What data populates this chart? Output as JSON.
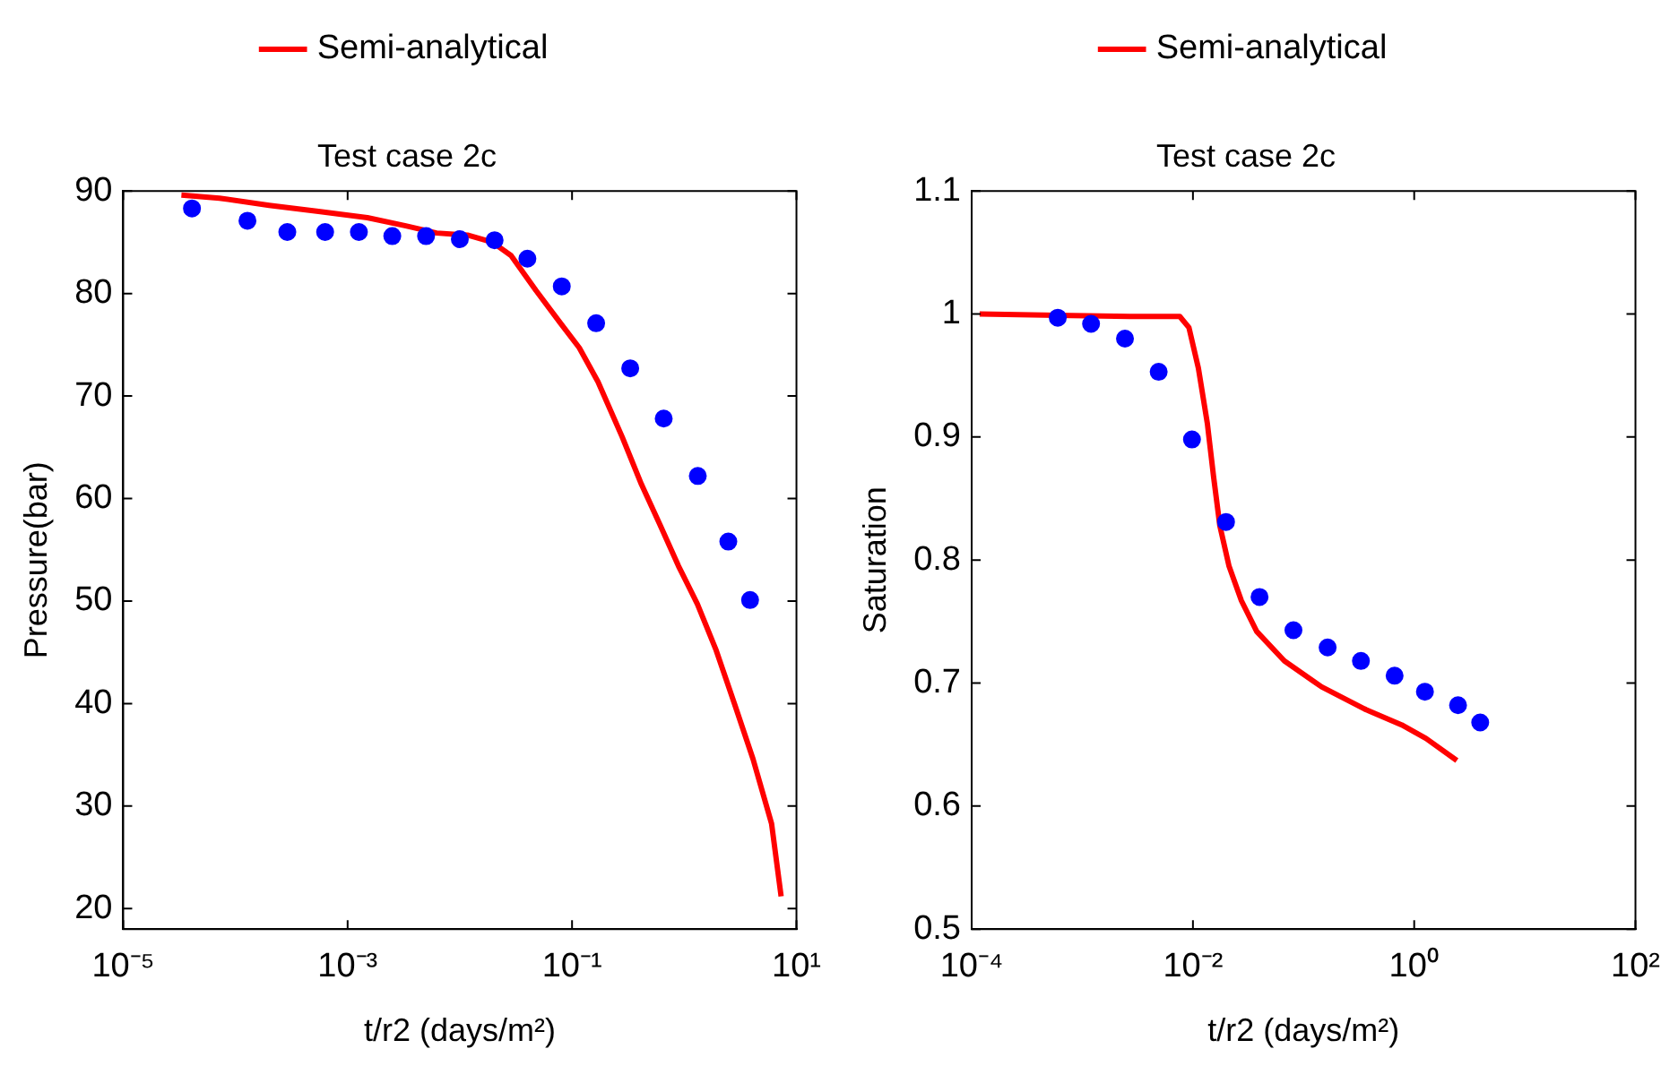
{
  "chart_data": [
    {
      "type": "line",
      "title": "Test case 2c",
      "xlabel": "t/r2 (days/m²)",
      "ylabel": "Pressure(bar)",
      "log": "x",
      "grid": false,
      "legend": "top",
      "xlim": [
        1e-05,
        10
      ],
      "xticks": [
        {
          "value": 1e-05,
          "label": "10⁻⁵"
        },
        {
          "value": 0.001,
          "label": "10⁻³"
        },
        {
          "value": 0.1,
          "label": "10⁻¹"
        },
        {
          "value": 10,
          "label": "10¹"
        }
      ],
      "ylim": [
        18,
        90
      ],
      "yticks": [
        20,
        30,
        40,
        50,
        60,
        70,
        80,
        90
      ],
      "series": [
        {
          "type": "scatter",
          "marker": "circle",
          "color": "#0000ff",
          "x": [
            4.1e-05,
            0.000128,
            0.00029,
            0.00063,
            0.00126,
            0.0025,
            0.005,
            0.01,
            0.0204,
            0.04,
            0.081,
            0.164,
            0.33,
            0.656,
            1.32,
            2.47,
            3.86
          ],
          "values": [
            88.3,
            87.1,
            86.0,
            86.0,
            86.0,
            85.6,
            85.6,
            85.3,
            85.2,
            83.4,
            80.7,
            77.1,
            72.7,
            67.8,
            62.2,
            55.8,
            50.1
          ]
        },
        {
          "type": "line",
          "name": "Semi-analytical",
          "color": "#ff0000",
          "line_style": "solid",
          "x": [
            3.3e-05,
            7.2e-05,
            0.0002,
            0.00055,
            0.0015,
            0.0033,
            0.0062,
            0.0117,
            0.0195,
            0.0286,
            0.0477,
            0.079,
            0.116,
            0.17,
            0.28,
            0.415,
            0.61,
            0.89,
            1.31,
            1.91,
            2.8,
            4.1,
            6.0,
            7.3
          ],
          "values": [
            89.6,
            89.3,
            88.6,
            88.0,
            87.4,
            86.6,
            85.9,
            85.7,
            85.0,
            83.7,
            80.3,
            77.1,
            74.7,
            71.4,
            66.0,
            61.4,
            57.4,
            53.4,
            49.7,
            45.3,
            40.0,
            34.6,
            28.3,
            21.2
          ]
        }
      ]
    },
    {
      "type": "line",
      "title": "Test case 2c",
      "xlabel": "t/r2 (days/m²)",
      "ylabel": "Saturation",
      "log": "x",
      "grid": false,
      "legend": "top",
      "xlim": [
        0.0001,
        100
      ],
      "xticks": [
        {
          "value": 0.0001,
          "label": "10⁻⁴"
        },
        {
          "value": 0.01,
          "label": "10⁻²"
        },
        {
          "value": 1,
          "label": "10⁰"
        },
        {
          "value": 100,
          "label": "10²"
        }
      ],
      "ylim": [
        0.5,
        1.1
      ],
      "yticks": [
        0.5,
        0.6,
        0.7,
        0.8,
        0.9,
        1,
        1.1
      ],
      "series": [
        {
          "type": "scatter",
          "marker": "circle",
          "color": "#0000ff",
          "x": [
            0.0006,
            0.0012,
            0.00243,
            0.0049,
            0.0098,
            0.0199,
            0.04,
            0.081,
            0.165,
            0.33,
            0.665,
            1.25,
            2.49,
            3.95
          ],
          "values": [
            0.997,
            0.992,
            0.98,
            0.953,
            0.898,
            0.831,
            0.77,
            0.743,
            0.729,
            0.718,
            0.706,
            0.693,
            0.682,
            0.668
          ]
        },
        {
          "type": "line",
          "name": "Semi-analytical",
          "color": "#ff0000",
          "line_style": "solid",
          "x": [
            0.000118,
            0.00059,
            0.0027,
            0.0076,
            0.0092,
            0.0112,
            0.0135,
            0.0154,
            0.0175,
            0.0212,
            0.0274,
            0.0377,
            0.067,
            0.145,
            0.355,
            0.77,
            1.28,
            2.43
          ],
          "values": [
            1.0,
            0.999,
            0.998,
            0.998,
            0.989,
            0.956,
            0.911,
            0.867,
            0.828,
            0.795,
            0.767,
            0.742,
            0.718,
            0.697,
            0.679,
            0.666,
            0.655,
            0.637
          ]
        }
      ]
    }
  ]
}
